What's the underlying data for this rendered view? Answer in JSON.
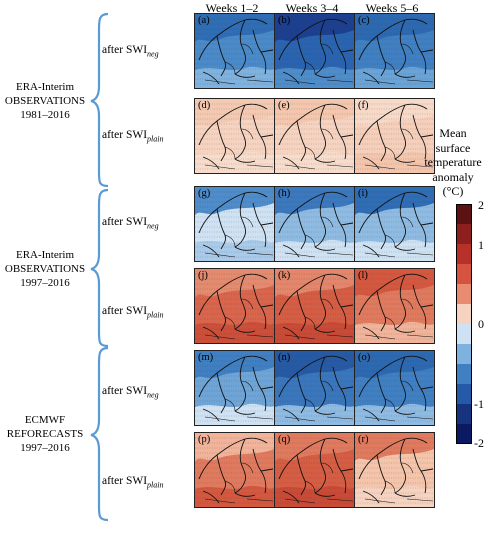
{
  "columns": [
    "Weeks 1–2",
    "Weeks 3–4",
    "Weeks 5–6"
  ],
  "groups": [
    {
      "lines": [
        "ERA-Interim",
        "OBSERVATIONS",
        "1981–2016"
      ]
    },
    {
      "lines": [
        "ERA-Interim",
        "OBSERVATIONS",
        "1997–2016"
      ]
    },
    {
      "lines": [
        "ECMWF",
        "REFORECASTS",
        "1997–2016"
      ]
    }
  ],
  "rows": [
    {
      "prefix": "after SWI",
      "sub": "neg"
    },
    {
      "prefix": "after SWI",
      "sub": "plain"
    },
    {
      "prefix": "after SWI",
      "sub": "neg"
    },
    {
      "prefix": "after SWI",
      "sub": "plain"
    },
    {
      "prefix": "after SWI",
      "sub": "neg"
    },
    {
      "prefix": "after SWI",
      "sub": "plain"
    }
  ],
  "panels": [
    {
      "label": "(a)",
      "base": "#4a8ac8",
      "north": "#2f6db5",
      "south": "#7fb2de"
    },
    {
      "label": "(b)",
      "base": "#2a64b0",
      "north": "#1c3f90",
      "south": "#4f8cca"
    },
    {
      "label": "(c)",
      "base": "#3f7fc2",
      "north": "#2d69b0",
      "south": "#6aa3d6"
    },
    {
      "label": "(d)",
      "base": "#f6d3c0",
      "north": "#f4c9b2",
      "south": "#f7dccb"
    },
    {
      "label": "(e)",
      "base": "#f6d3c0",
      "north": "#f3c6ad",
      "south": "#f7dccb"
    },
    {
      "label": "(f)",
      "base": "#f5cfba",
      "north": "#f7d9c8",
      "south": "#f3c5ad"
    },
    {
      "label": "(g)",
      "base": "#cfe2f3",
      "north": "#4f8cca",
      "south": "#a9cbe9"
    },
    {
      "label": "(h)",
      "base": "#8fbbe2",
      "north": "#3b78bd",
      "south": "#cfe2f3"
    },
    {
      "label": "(i)",
      "base": "#8fbbe2",
      "north": "#2f6db5",
      "south": "#cfe2f3"
    },
    {
      "label": "(j)",
      "base": "#d9654c",
      "north": "#e48a6f",
      "south": "#cc4f3a"
    },
    {
      "label": "(k)",
      "base": "#d55d44",
      "north": "#e3866b",
      "south": "#c94a36"
    },
    {
      "label": "(l)",
      "base": "#e07a5f",
      "north": "#d4583f",
      "south": "#f1b49a"
    },
    {
      "label": "(m)",
      "base": "#6ea4d6",
      "north": "#3f7fc2",
      "south": "#cfe2f3"
    },
    {
      "label": "(n)",
      "base": "#3a76bc",
      "north": "#265aa5",
      "south": "#8fbbe2"
    },
    {
      "label": "(o)",
      "base": "#3f7fc2",
      "north": "#2d69b0",
      "south": "#8fbbe2"
    },
    {
      "label": "(p)",
      "base": "#e07a5f",
      "north": "#f1b49a",
      "south": "#d4583f"
    },
    {
      "label": "(q)",
      "base": "#d55d44",
      "north": "#e07a5f",
      "south": "#c94a36"
    },
    {
      "label": "(r)",
      "base": "#f4c4ab",
      "north": "#e07a5f",
      "south": "#f6d3c0"
    }
  ],
  "colorbar": {
    "title_lines": [
      "Mean",
      "surface",
      "temperature",
      "anomaly",
      "(°C)"
    ],
    "ticks": [
      "2",
      "1",
      "0",
      "-1",
      "-2"
    ],
    "colors": [
      "#5c1212",
      "#8e1f1f",
      "#b8302a",
      "#d6533f",
      "#e88b70",
      "#f6d3c0",
      "#cfe2f3",
      "#7fb2de",
      "#3f7fc2",
      "#245aa8",
      "#16337e",
      "#0b1a63"
    ]
  },
  "brace_color": "#5b9bd5"
}
